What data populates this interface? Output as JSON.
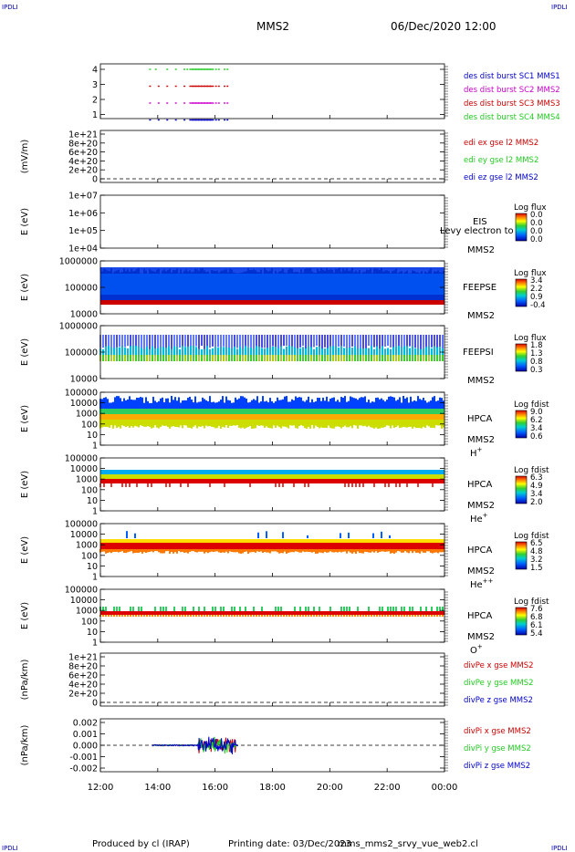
{
  "header": {
    "corner_left_top": "IPDLI",
    "corner_right_top": "IPDLI",
    "corner_left_bottom": "IPDLI",
    "corner_right_bottom": "IPDLI",
    "spacecraft": "MMS2",
    "datetime": "06/Dec/2020 12:00"
  },
  "footer": {
    "produced_by": "Produced by cl (IRAP)",
    "printing_date": "Printing date: 03/Dec/2023",
    "script": "mms_mms2_srvy_vue_web2.cl"
  },
  "colors": {
    "red": "#cc0000",
    "magenta": "#cc00cc",
    "green": "#22cc22",
    "blue": "#0000cc"
  },
  "chart_data": {
    "type": "multi-panel time series",
    "x_axis": {
      "ticks": [
        "12:00",
        "14:00",
        "16:00",
        "18:00",
        "20:00",
        "22:00",
        "00:00"
      ],
      "range_hours": [
        12,
        24
      ]
    },
    "panels": [
      {
        "id": "burst",
        "type": "timeline",
        "ylabel": "",
        "yticks": [
          "4",
          "3",
          "2",
          "1"
        ],
        "legend": [
          {
            "text": "des dist burst SC1 MMS1",
            "color": "blue"
          },
          {
            "text": "des dist burst SC2 MMS2",
            "color": "magenta"
          },
          {
            "text": "des dist burst SC3 MMS3",
            "color": "red"
          },
          {
            "text": "des dist burst SC4 MMS4",
            "color": "green"
          }
        ],
        "segments": [
          {
            "level": 4,
            "color": "green",
            "hours": [
              13.7,
              13.9,
              14.3,
              14.6,
              14.9,
              15.0,
              15.1,
              15.2,
              15.3,
              15.4,
              15.5,
              15.6,
              15.7,
              15.8,
              16.0,
              16.1,
              16.3,
              16.4
            ]
          },
          {
            "level": 3,
            "color": "red",
            "hours": [
              13.7,
              14.0,
              14.3,
              14.6,
              14.9,
              15.1,
              15.2,
              15.3,
              15.4,
              15.5,
              15.6,
              15.7,
              15.8,
              16.0,
              16.1,
              16.3,
              16.4
            ]
          },
          {
            "level": 2,
            "color": "magenta",
            "hours": [
              13.7,
              14.0,
              14.3,
              14.6,
              14.9,
              15.1,
              15.2,
              15.3,
              15.4,
              15.5,
              15.6,
              15.7,
              15.8,
              16.0,
              16.1,
              16.3,
              16.4
            ]
          },
          {
            "level": 1,
            "color": "blue",
            "hours": [
              13.7,
              14.0,
              14.3,
              14.6,
              14.9,
              15.1,
              15.2,
              15.3,
              15.4,
              15.5,
              15.6,
              15.7,
              15.8,
              16.0,
              16.1,
              16.3,
              16.4
            ]
          }
        ]
      },
      {
        "id": "edi",
        "type": "line",
        "ylabel": "(mV/m)",
        "yticks": [
          "1e+21",
          "8e+20",
          "6e+20",
          "4e+20",
          "2e+20",
          "0"
        ],
        "legend": [
          {
            "text": "edi ex gse l2 MMS2",
            "color": "red"
          },
          {
            "text": "edi ey gse l2 MMS2",
            "color": "green"
          },
          {
            "text": "edi ez gse l2 MMS2",
            "color": "blue"
          }
        ],
        "zero_line": true
      },
      {
        "id": "eis",
        "type": "spectrogram",
        "ylabel": "E (eV)",
        "yticks": [
          "1e+07",
          "1e+06",
          "1e+05",
          "1e+04"
        ],
        "label": "EIS",
        "label2": "MMS2",
        "overlay_text": "Levy electron to",
        "colorbar_title": "Log flux",
        "colorbar_values": [
          "0.0",
          "0.0",
          "0.0",
          "0.0"
        ]
      },
      {
        "id": "feepse",
        "type": "spectrogram",
        "ylabel": "E (eV)",
        "yticks": [
          "1000000",
          "100000",
          "10000"
        ],
        "label": "FEEPSE",
        "label2": "MMS2",
        "colorbar_title": "Log flux",
        "colorbar_values": [
          "3.4",
          "2.2",
          "0.9",
          "-0.4"
        ]
      },
      {
        "id": "feepsi",
        "type": "spectrogram",
        "ylabel": "E (eV)",
        "yticks": [
          "1000000",
          "100000",
          "10000"
        ],
        "label": "FEEPSI",
        "label2": "MMS2",
        "colorbar_title": "Log flux",
        "colorbar_values": [
          "1.8",
          "1.3",
          "0.8",
          "0.3"
        ]
      },
      {
        "id": "hpca_h",
        "type": "spectrogram",
        "ylabel": "E (eV)",
        "yticks": [
          "100000",
          "10000",
          "1000",
          "100",
          "10",
          "1"
        ],
        "label": "HPCA",
        "label2": "MMS2",
        "species": "H",
        "charge": "+",
        "colorbar_title": "Log fdist",
        "colorbar_values": [
          "9.0",
          "6.2",
          "3.4",
          "0.6"
        ]
      },
      {
        "id": "hpca_he",
        "type": "spectrogram",
        "ylabel": "E (eV)",
        "yticks": [
          "100000",
          "10000",
          "1000",
          "100",
          "10",
          "1"
        ],
        "label": "HPCA",
        "label2": "MMS2",
        "species": "He",
        "charge": "+",
        "colorbar_title": "Log fdist",
        "colorbar_values": [
          "6.3",
          "4.9",
          "3.4",
          "2.0"
        ]
      },
      {
        "id": "hpca_hepp",
        "type": "spectrogram",
        "ylabel": "E (eV)",
        "yticks": [
          "100000",
          "10000",
          "1000",
          "100",
          "10",
          "1"
        ],
        "label": "HPCA",
        "label2": "MMS2",
        "species": "He",
        "charge": "++",
        "colorbar_title": "Log fdist",
        "colorbar_values": [
          "6.5",
          "4.8",
          "3.2",
          "1.5"
        ]
      },
      {
        "id": "hpca_o",
        "type": "spectrogram",
        "ylabel": "E (eV)",
        "yticks": [
          "100000",
          "10000",
          "1000",
          "100",
          "10",
          "1"
        ],
        "label": "HPCA",
        "label2": "MMS2",
        "species": "O",
        "charge": "+",
        "colorbar_title": "Log fdist",
        "colorbar_values": [
          "7.6",
          "6.8",
          "6.1",
          "5.4"
        ]
      },
      {
        "id": "divpe",
        "type": "line",
        "ylabel": "(nPa/km)",
        "yticks": [
          "1e+21",
          "8e+20",
          "6e+20",
          "4e+20",
          "2e+20",
          "0"
        ],
        "legend": [
          {
            "text": "divPe x gse MMS2",
            "color": "red"
          },
          {
            "text": "divPe y gse MMS2",
            "color": "green"
          },
          {
            "text": "divPe z gse MMS2",
            "color": "blue"
          }
        ],
        "zero_line": true
      },
      {
        "id": "divpi",
        "type": "line",
        "ylabel": "(nPa/km)",
        "yticks": [
          "0.002",
          "0.001",
          "0.000",
          "-0.001",
          "-0.002"
        ],
        "ylim": [
          -0.0025,
          0.0025
        ],
        "legend": [
          {
            "text": "divPi x gse MMS2",
            "color": "red"
          },
          {
            "text": "divPi y gse MMS2",
            "color": "green"
          },
          {
            "text": "divPi z gse MMS2",
            "color": "blue"
          }
        ],
        "zero_line": true,
        "data_span_hours": [
          13.8,
          16.8
        ]
      }
    ]
  }
}
